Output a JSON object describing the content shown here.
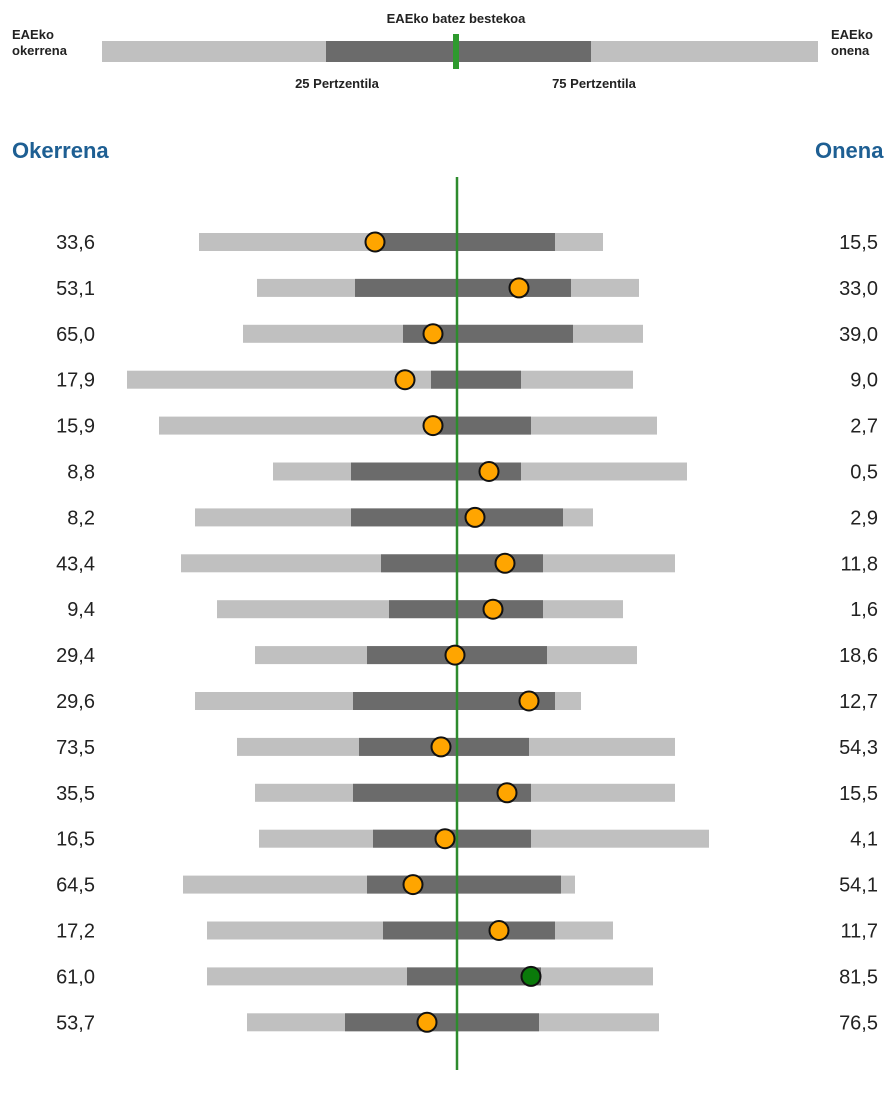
{
  "legend": {
    "left_label_1": "EAEko",
    "left_label_2": "okerrena",
    "right_label_1": "EAEko",
    "right_label_2": "onena",
    "center_label": "EAEko batez bestekoa",
    "p25_label": "25 Pertzentila",
    "p75_label": "75 Pertzentila"
  },
  "headers": {
    "worst": "Okerrena",
    "best": "Onena"
  },
  "colors": {
    "range": "#c0c0c0",
    "iqr": "#6b6b6b",
    "average_line": "#2e8b2e",
    "marker_default": "#ffa500",
    "marker_highlight": "#0a7a0a",
    "header_text": "#1e5f93"
  },
  "chart_data": {
    "type": "range-bar",
    "note": "Values on a normalized scale where 0 = EAEko batez bestekoa (average), -1 = worst side edge, +1 = best side edge",
    "rows": [
      {
        "worst": "33,6",
        "best": "15,5",
        "min": -0.645,
        "p25": -0.205,
        "p75": 0.245,
        "max": 0.365,
        "marker": -0.205,
        "highlight": false
      },
      {
        "worst": "53,1",
        "best": "33,0",
        "min": -0.5,
        "p25": -0.255,
        "p75": 0.285,
        "max": 0.455,
        "marker": 0.155,
        "highlight": false
      },
      {
        "worst": "65,0",
        "best": "39,0",
        "min": -0.535,
        "p25": -0.135,
        "p75": 0.29,
        "max": 0.465,
        "marker": -0.06,
        "highlight": false
      },
      {
        "worst": "17,9",
        "best": "9,0",
        "min": -0.825,
        "p25": -0.065,
        "p75": 0.16,
        "max": 0.44,
        "marker": -0.13,
        "highlight": false
      },
      {
        "worst": "15,9",
        "best": "2,7",
        "min": -0.745,
        "p25": -0.06,
        "p75": 0.185,
        "max": 0.5,
        "marker": -0.06,
        "highlight": false
      },
      {
        "worst": "8,8",
        "best": "0,5",
        "min": -0.46,
        "p25": -0.265,
        "p75": 0.16,
        "max": 0.575,
        "marker": 0.08,
        "highlight": false
      },
      {
        "worst": "8,2",
        "best": "2,9",
        "min": -0.655,
        "p25": -0.265,
        "p75": 0.265,
        "max": 0.34,
        "marker": 0.045,
        "highlight": false
      },
      {
        "worst": "43,4",
        "best": "11,8",
        "min": -0.69,
        "p25": -0.19,
        "p75": 0.215,
        "max": 0.545,
        "marker": 0.12,
        "highlight": false
      },
      {
        "worst": "9,4",
        "best": "1,6",
        "min": -0.6,
        "p25": -0.17,
        "p75": 0.215,
        "max": 0.415,
        "marker": 0.09,
        "highlight": false
      },
      {
        "worst": "29,4",
        "best": "18,6",
        "min": -0.505,
        "p25": -0.225,
        "p75": 0.225,
        "max": 0.45,
        "marker": -0.005,
        "highlight": false
      },
      {
        "worst": "29,6",
        "best": "12,7",
        "min": -0.655,
        "p25": -0.26,
        "p75": 0.245,
        "max": 0.31,
        "marker": 0.18,
        "highlight": false
      },
      {
        "worst": "73,5",
        "best": "54,3",
        "min": -0.55,
        "p25": -0.245,
        "p75": 0.18,
        "max": 0.545,
        "marker": -0.04,
        "highlight": false
      },
      {
        "worst": "35,5",
        "best": "15,5",
        "min": -0.505,
        "p25": -0.26,
        "p75": 0.185,
        "max": 0.545,
        "marker": 0.125,
        "highlight": false
      },
      {
        "worst": "16,5",
        "best": "4,1",
        "min": -0.495,
        "p25": -0.21,
        "p75": 0.185,
        "max": 0.63,
        "marker": -0.03,
        "highlight": false
      },
      {
        "worst": "64,5",
        "best": "54,1",
        "min": -0.685,
        "p25": -0.225,
        "p75": 0.26,
        "max": 0.295,
        "marker": -0.11,
        "highlight": false
      },
      {
        "worst": "17,2",
        "best": "11,7",
        "min": -0.625,
        "p25": -0.185,
        "p75": 0.245,
        "max": 0.39,
        "marker": 0.105,
        "highlight": false
      },
      {
        "worst": "61,0",
        "best": "81,5",
        "min": -0.625,
        "p25": -0.125,
        "p75": 0.21,
        "max": 0.49,
        "marker": 0.185,
        "highlight": true
      },
      {
        "worst": "53,7",
        "best": "76,5",
        "min": -0.525,
        "p25": -0.28,
        "p75": 0.205,
        "max": 0.505,
        "marker": -0.075,
        "highlight": false
      }
    ]
  }
}
